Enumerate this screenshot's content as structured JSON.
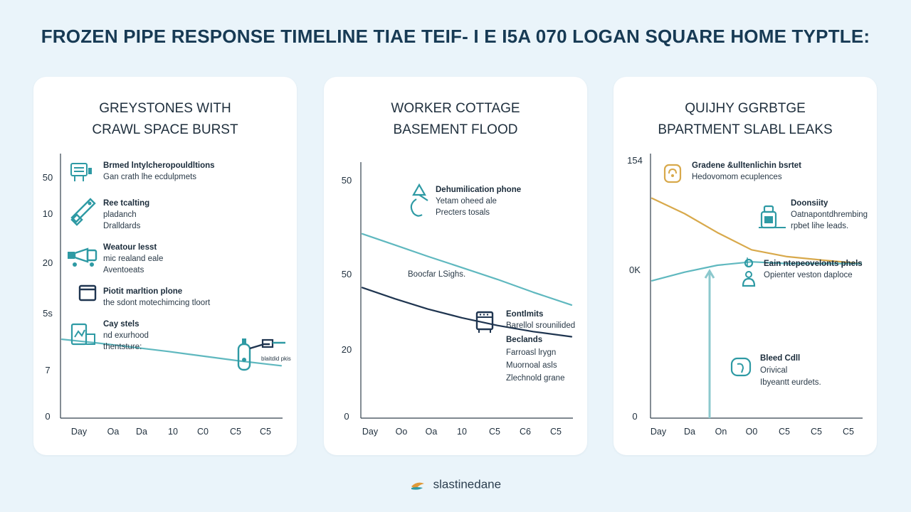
{
  "title": "FROZEN PIPE RESPONSE TIMELINE TIAE TEIF- I E I5A 070 LOGAN SQUARE HOME TYPTLE:",
  "footer": {
    "brand": "slastinedane"
  },
  "colors": {
    "teal": "#5fb8bf",
    "navy": "#1f3550",
    "gold": "#d8a94b",
    "icon": "#2e9aa4"
  },
  "chart_data": [
    {
      "type": "line",
      "title_lines": [
        "GREYSTONES WITH",
        "CRAWL SPACE BURST"
      ],
      "y_ticks": [
        "50",
        "10",
        "20",
        "5s",
        "7",
        "0"
      ],
      "x_ticks": [
        "Day",
        "Oa",
        "Da",
        "10",
        "C0",
        "C5",
        "C5"
      ],
      "series": [
        {
          "color": "#5fb8bf",
          "values": [
            14.9,
            14.2,
            13.4,
            12.6,
            11.7,
            10.8,
            9.9
          ]
        }
      ],
      "ylim": [
        0,
        50
      ],
      "annotations": [
        {
          "icon": "equipment-icon",
          "title": "Brmed lntylcheropouldltions",
          "lines": [
            "Gan crath lhe ecdulpmets"
          ]
        },
        {
          "icon": "wrench-icon",
          "title": "Ree tcalting",
          "lines": [
            "pladanch",
            "Dralldards"
          ]
        },
        {
          "icon": "pump-icon",
          "title": "Weatour lesst",
          "lines": [
            "mic realand eale",
            "Aventoeats"
          ]
        },
        {
          "icon": "box-icon",
          "title": "Piotit marltion plone",
          "lines": [
            "the sdont motechimcing tloort"
          ]
        },
        {
          "icon": "clipboard-icon",
          "title": "Cay stels",
          "lines": [
            "nd exurhood",
            "thentsture:"
          ]
        },
        {
          "icon": "valve-icon",
          "title": "",
          "lines": [
            "blaitdid pkis"
          ]
        }
      ]
    },
    {
      "type": "line",
      "title_lines": [
        "WORKER COTTAGE",
        "BASEMENT FLOOD"
      ],
      "y_ticks": [
        "50",
        "50",
        "20",
        "0"
      ],
      "x_ticks": [
        "Day",
        "Oo",
        "Oa",
        "10",
        "C5",
        "C6",
        "C5"
      ],
      "series": [
        {
          "color": "#5fb8bf",
          "values": [
            36,
            33.8,
            31.6,
            29.4,
            27.1,
            24.6,
            22.1
          ]
        },
        {
          "color": "#1f3550",
          "values": [
            25.5,
            23.3,
            21.3,
            19.6,
            18.1,
            16.9,
            15.9
          ]
        }
      ],
      "ylim": [
        0,
        50
      ],
      "annotations": [
        {
          "icon": "dehumidifier-icon",
          "title": "Dehumilication phone",
          "lines": [
            "Yetam oheed ale",
            "Precters tosals"
          ]
        },
        {
          "icon": "",
          "title": "",
          "lines": [
            "Boocfar LSighs."
          ]
        },
        {
          "icon": "cabinet-icon",
          "title": "Eontlmits",
          "lines": [
            "Barellol srounilided"
          ]
        },
        {
          "icon": "",
          "title": "Beclands",
          "lines": [
            "Farroasl lrygn",
            "Muornoal asls",
            "Zlechnold grane"
          ]
        }
      ]
    },
    {
      "type": "line",
      "title_lines": [
        "QUIJHY GGRBTGE",
        "BPARTMENT SLABL LEAKS"
      ],
      "y_ticks": [
        "154",
        "0K",
        "0"
      ],
      "x_ticks": [
        "Day",
        "Da",
        "On",
        "O0",
        "C5",
        "C5",
        "C5"
      ],
      "series": [
        {
          "color": "#d8a94b",
          "values": [
            128,
            119,
            108,
            98,
            94,
            92,
            90
          ]
        },
        {
          "color": "#5fb8bf",
          "values": [
            80,
            85,
            89,
            91,
            90,
            90,
            90
          ]
        }
      ],
      "ylim": [
        0,
        154
      ],
      "annotations": [
        {
          "icon": "lock-icon",
          "title": "Gradene &ulltenlichin bsrtet",
          "lines": [
            "Hedovomom ecuplences"
          ]
        },
        {
          "icon": "spray-icon",
          "title": "Doonsiity",
          "lines": [
            "Oatnapontdhrembing",
            "rpbet lihe leads."
          ]
        },
        {
          "icon": "person-icon",
          "title": "Eain ntepeovelonts phels",
          "lines": [
            "Opienter veston daploce"
          ]
        },
        {
          "icon": "chat-icon",
          "title": "Bleed Cdll",
          "lines": [
            "Orivical",
            "Ibyeantt eurdets."
          ]
        }
      ]
    }
  ]
}
